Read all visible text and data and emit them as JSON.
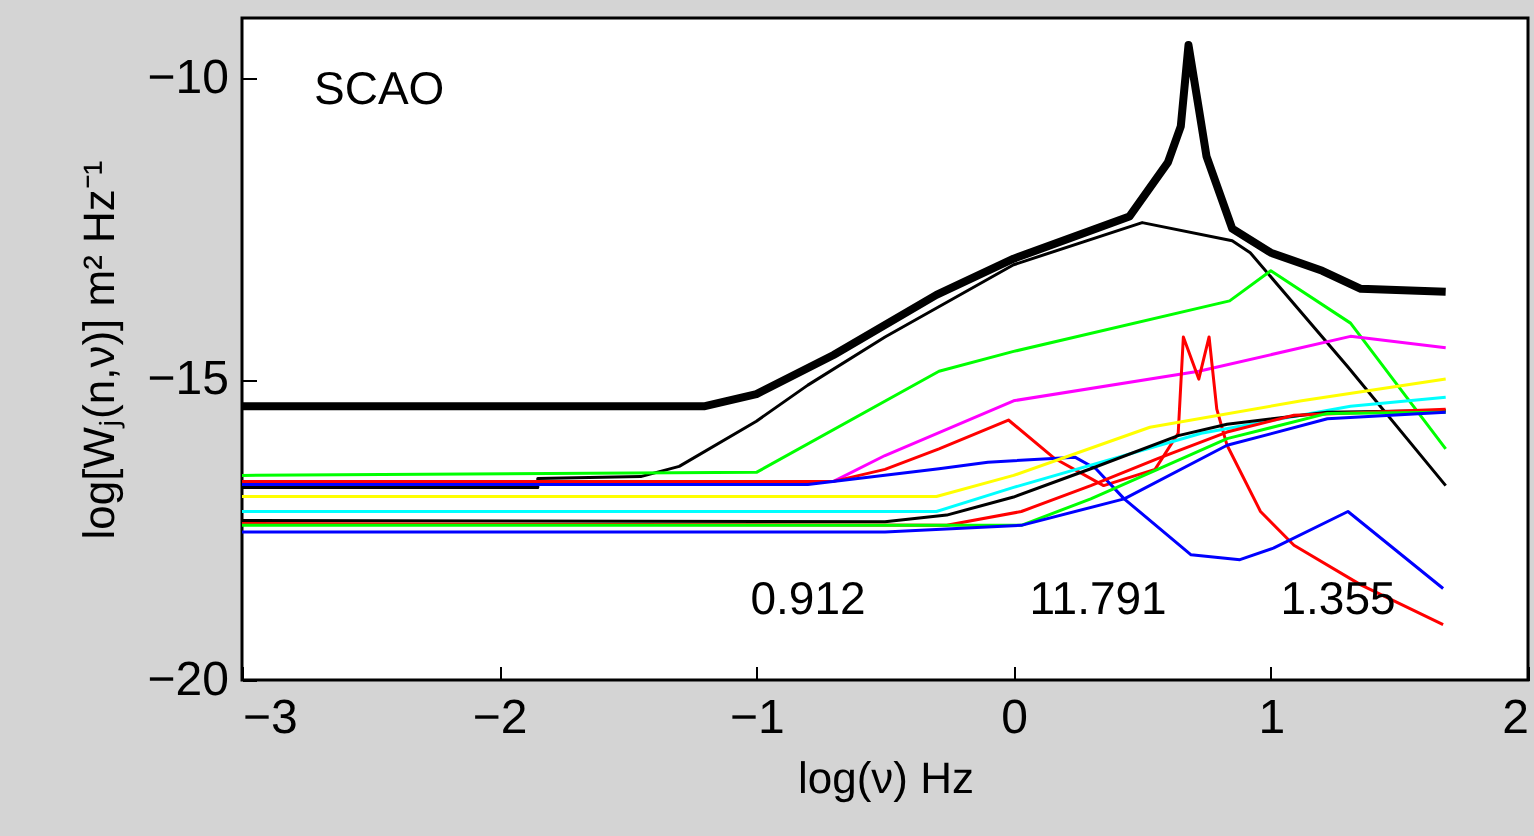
{
  "chart_data": {
    "type": "line",
    "xlabel": "log(ν) Hz",
    "ylabel": "log[Wⱼ(n,ν)] m² Hz⁻¹",
    "xlim": [
      -3,
      2
    ],
    "ylim": [
      -20,
      -9
    ],
    "xticks": [
      -3,
      -2,
      -1,
      0,
      1,
      2
    ],
    "yticks": [
      -20,
      -15,
      -10
    ],
    "grid": false,
    "marker": "none",
    "line_style": "solid",
    "annotations": [
      "SCAO",
      "0.912",
      "11.791",
      "1.355"
    ],
    "series": [
      {
        "color": "#000000",
        "x": [
          -3,
          -1.2,
          -1.0,
          -0.7,
          -0.3,
          0,
          0.45,
          0.6,
          0.65,
          0.68,
          0.72,
          0.75,
          0.85,
          1.0,
          1.2,
          1.35,
          1.68
        ],
        "values": [
          -15.45,
          -15.45,
          -15.25,
          -14.6,
          -13.6,
          -13.0,
          -12.3,
          -11.4,
          -10.8,
          -9.45,
          -10.5,
          -11.3,
          -12.5,
          -12.9,
          -13.2,
          -13.5,
          -13.55
        ]
      },
      {
        "color": "#000000",
        "x": [
          -3,
          -1.85,
          -1.85,
          -1.45,
          -1.3,
          -1.0,
          -0.8,
          -0.5,
          0,
          0.5,
          0.85,
          0.92,
          1.3,
          1.68
        ],
        "values": [
          -16.8,
          -16.8,
          -16.65,
          -16.62,
          -16.45,
          -15.7,
          -15.1,
          -14.3,
          -13.1,
          -12.4,
          -12.7,
          -12.9,
          -14.8,
          -16.77
        ]
      },
      {
        "color": "#00ff00",
        "x": [
          -3,
          -1.0,
          -0.29,
          0,
          0.84,
          1.0,
          1.31,
          1.68
        ],
        "values": [
          -16.6,
          -16.55,
          -14.87,
          -14.54,
          -13.7,
          -13.2,
          -14.07,
          -16.16
        ]
      },
      {
        "color": "#ff00ff",
        "x": [
          -3,
          -0.7,
          -0.5,
          0,
          0.72,
          1.31,
          1.68
        ],
        "values": [
          -16.75,
          -16.7,
          -16.27,
          -15.36,
          -14.87,
          -14.29,
          -14.48
        ]
      },
      {
        "color": "#ff0000",
        "x": [
          -3,
          -0.7,
          -0.5,
          -0.29,
          -0.02,
          0.16,
          0.35,
          0.55,
          0.64,
          0.66,
          0.72,
          0.76,
          0.79,
          0.83,
          0.96,
          1.09,
          1.35,
          1.67
        ],
        "values": [
          -16.7,
          -16.7,
          -16.5,
          -16.16,
          -15.68,
          -16.32,
          -16.77,
          -16.5,
          -15.9,
          -14.3,
          -15.0,
          -14.3,
          -15.5,
          -16.1,
          -17.2,
          -17.76,
          -18.42,
          -19.08
        ]
      },
      {
        "color": "#0000ff",
        "x": [
          -3,
          -0.8,
          -0.29,
          -0.1,
          0.24,
          0.32,
          0.43,
          0.69,
          0.88,
          1.01,
          1.3,
          1.67
        ],
        "values": [
          -16.75,
          -16.75,
          -16.49,
          -16.38,
          -16.3,
          -16.49,
          -16.99,
          -17.92,
          -18.0,
          -17.81,
          -17.2,
          -18.48
        ]
      },
      {
        "color": "#ffff00",
        "x": [
          -3,
          -0.3,
          0,
          0.53,
          1.12,
          1.68
        ],
        "values": [
          -16.95,
          -16.95,
          -16.6,
          -15.8,
          -15.36,
          -15.0
        ]
      },
      {
        "color": "#00ffff",
        "x": [
          -3,
          -0.3,
          0,
          0.73,
          1.31,
          1.68
        ],
        "values": [
          -17.2,
          -17.2,
          -16.8,
          -15.9,
          -15.45,
          -15.3
        ]
      },
      {
        "color": "#000000",
        "x": [
          -3,
          -0.5,
          -0.26,
          0,
          0.3,
          0.64,
          0.83,
          1.22,
          1.68
        ],
        "values": [
          -17.35,
          -17.37,
          -17.26,
          -16.96,
          -16.49,
          -15.94,
          -15.75,
          -15.55,
          -15.52
        ]
      },
      {
        "color": "#ff0000",
        "x": [
          -3,
          -0.26,
          0.03,
          0.3,
          0.56,
          0.83,
          1.09,
          1.68
        ],
        "values": [
          -17.4,
          -17.43,
          -17.2,
          -16.77,
          -16.32,
          -15.88,
          -15.6,
          -15.5
        ]
      },
      {
        "color": "#00ff00",
        "x": [
          -3,
          0.03,
          0.3,
          0.56,
          0.83,
          1.22,
          1.68
        ],
        "values": [
          -17.43,
          -17.43,
          -16.99,
          -16.5,
          -15.99,
          -15.57,
          -15.55
        ]
      },
      {
        "color": "#0000ff",
        "x": [
          -3,
          -0.5,
          0.03,
          0.43,
          0.83,
          1.22,
          1.68
        ],
        "values": [
          -17.54,
          -17.54,
          -17.43,
          -16.99,
          -16.1,
          -15.66,
          -15.55
        ]
      }
    ]
  }
}
